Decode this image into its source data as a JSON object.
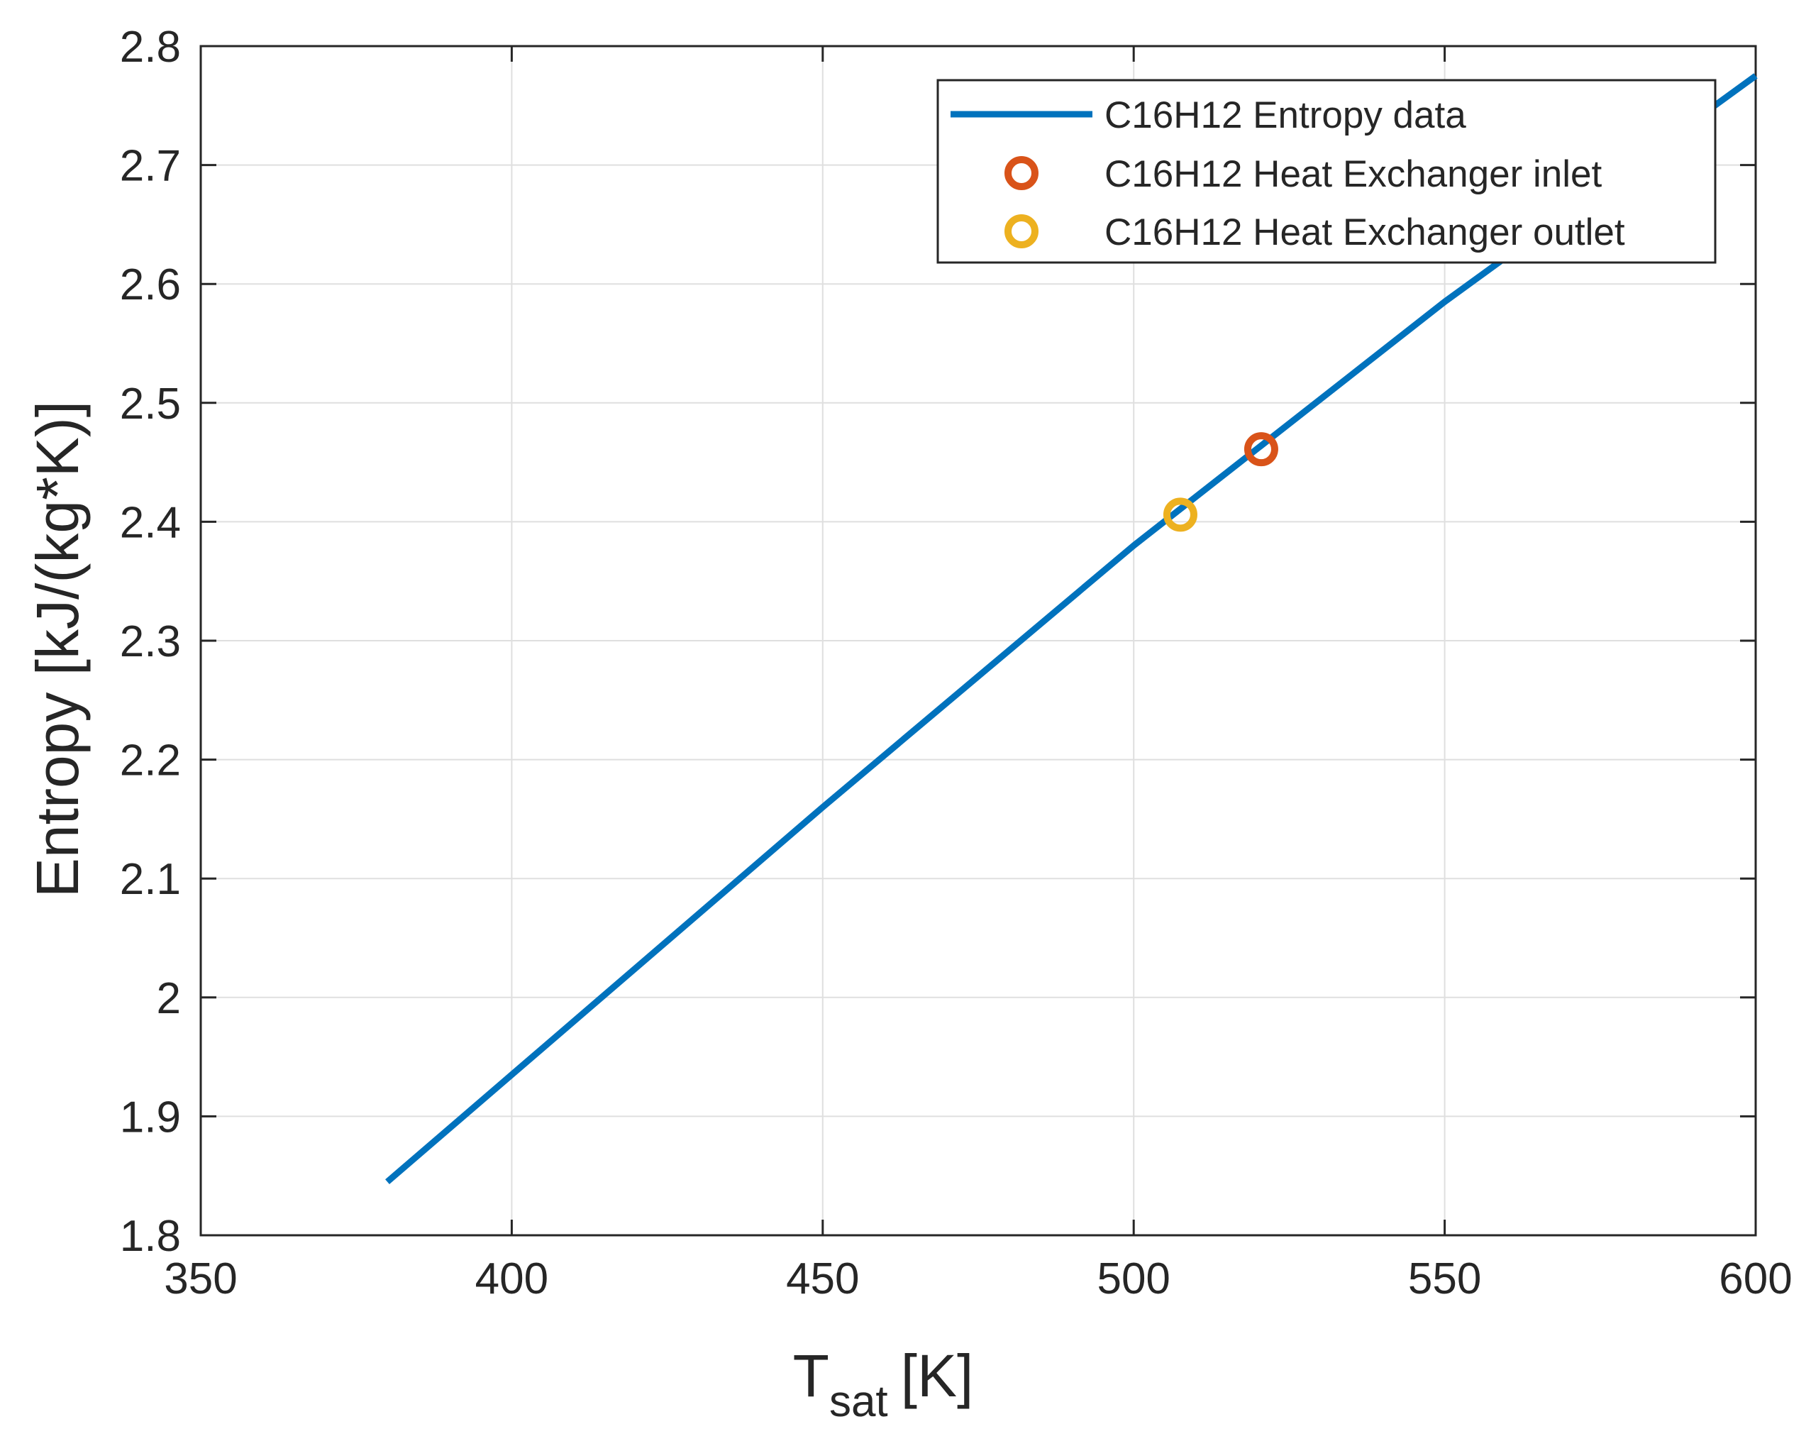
{
  "chart_data": {
    "type": "line",
    "title": "",
    "xlabel": "T",
    "xlabel_subscript": "sat",
    "xlabel_unit": "[K]",
    "ylabel": "Entropy [kJ/(kg*K)]",
    "xlim": [
      350,
      600
    ],
    "ylim": [
      1.8,
      2.8
    ],
    "xticks": [
      350,
      400,
      450,
      500,
      550,
      600
    ],
    "yticks": [
      1.8,
      1.9,
      2.0,
      2.1,
      2.2,
      2.3,
      2.4,
      2.5,
      2.6,
      2.7,
      2.8
    ],
    "xtick_labels": [
      "350",
      "400",
      "450",
      "500",
      "550",
      "600"
    ],
    "ytick_labels": [
      "1.8",
      "1.9",
      "2",
      "2.1",
      "2.2",
      "2.3",
      "2.4",
      "2.5",
      "2.6",
      "2.7",
      "2.8"
    ],
    "grid": true,
    "legend_position": "top-right",
    "series": [
      {
        "name": "C16H12 Entropy data",
        "kind": "line",
        "color": "#0072BD",
        "x": [
          380,
          400,
          450,
          500,
          550,
          600
        ],
        "y": [
          1.845,
          1.935,
          2.16,
          2.38,
          2.585,
          2.775
        ]
      },
      {
        "name": "C16H12 Heat Exchanger inlet",
        "kind": "marker",
        "color": "#D95319",
        "x": [
          520.5
        ],
        "y": [
          2.461
        ]
      },
      {
        "name": "C16H12 Heat Exchanger outlet",
        "kind": "marker",
        "color": "#EDB120",
        "x": [
          507.5
        ],
        "y": [
          2.406
        ]
      }
    ]
  }
}
